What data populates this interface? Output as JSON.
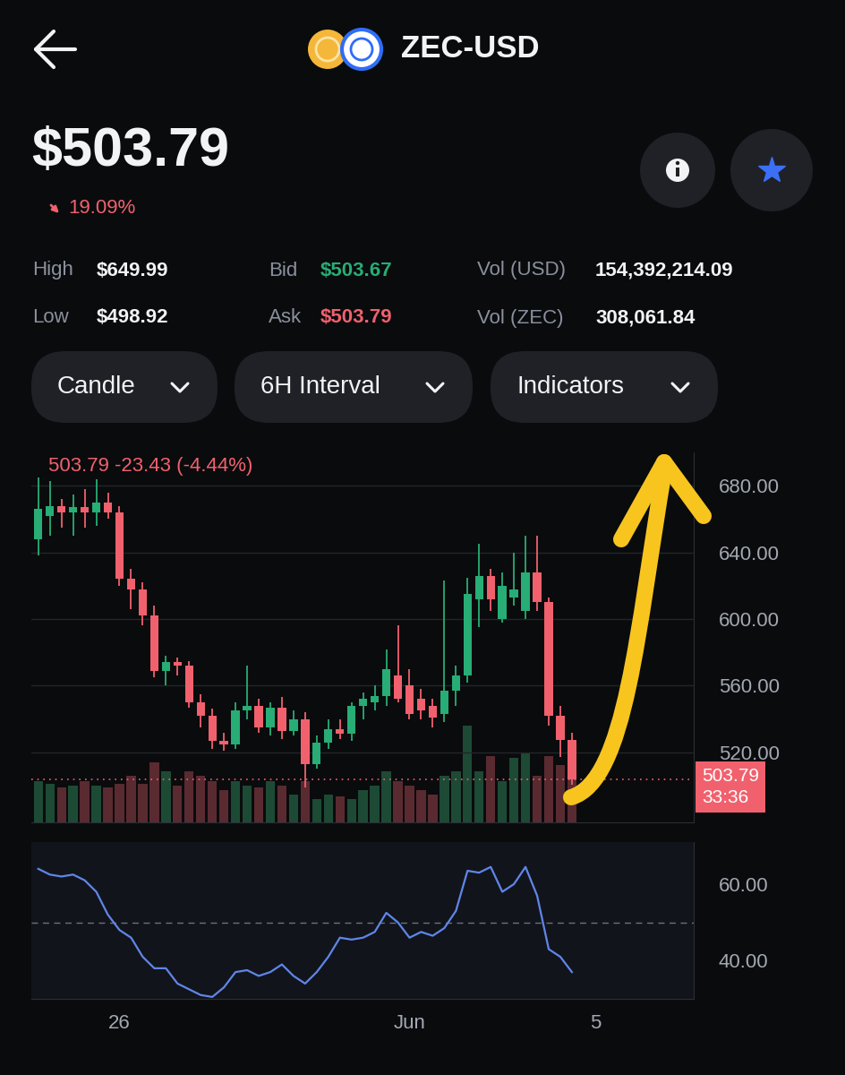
{
  "header": {
    "title": "ZEC-USD",
    "price": "$503.79",
    "change": "19.09%"
  },
  "stats": [
    [
      {
        "label": "High",
        "value": "$649.99",
        "color": "#f2f3f5"
      },
      {
        "label": "Bid",
        "value": "$503.67",
        "color": "#27ad75"
      },
      {
        "label": "Vol (USD)",
        "value": "154,392,214.09",
        "color": "#f2f3f5"
      }
    ],
    [
      {
        "label": "Low",
        "value": "$498.92",
        "color": "#f2f3f5"
      },
      {
        "label": "Ask",
        "value": "$503.79",
        "color": "#f0616d"
      },
      {
        "label": "Vol (ZEC)",
        "value": "308,061.84",
        "color": "#f2f3f5"
      }
    ]
  ],
  "controls": [
    "Candle",
    "6H Interval",
    "Indicators"
  ],
  "chart_data": [
    {
      "type": "candlestick",
      "title": "503.79 -23.43 (-4.44%)",
      "categories": [
        null,
        null,
        null,
        null,
        null,
        null,
        null,
        "26",
        null,
        null,
        null,
        null,
        null,
        null,
        null,
        null,
        null,
        null,
        null,
        null,
        null,
        null,
        null,
        null,
        null,
        null,
        null,
        null,
        null,
        null,
        null,
        null,
        "Jun",
        null,
        null,
        null,
        null,
        null,
        null,
        null,
        null,
        null,
        null,
        null,
        null,
        null,
        null,
        null,
        "5",
        null,
        null,
        null,
        null,
        null,
        null,
        null,
        null
      ],
      "open": [
        648,
        662,
        668,
        664,
        667,
        664,
        670,
        664,
        624,
        618,
        602,
        569,
        574,
        572,
        550,
        542,
        527,
        525,
        545,
        548,
        535,
        547,
        533,
        540,
        513,
        526,
        534,
        531,
        548,
        550,
        554,
        566,
        560,
        552,
        548,
        543,
        557,
        566,
        612,
        626,
        600,
        613,
        605,
        628,
        610,
        542,
        527.22,
        null,
        null,
        null,
        null,
        null,
        null,
        null,
        null,
        null,
        null
      ],
      "high": [
        685,
        683,
        672,
        675,
        678,
        684,
        676,
        668,
        630,
        622,
        608,
        578,
        577,
        575,
        555,
        546,
        532,
        550,
        572,
        552,
        550,
        553,
        545,
        544,
        530,
        540,
        540,
        550,
        556,
        560,
        582,
        596,
        570,
        558,
        552,
        623,
        572,
        625,
        645,
        630,
        628,
        640,
        650,
        650,
        613,
        548,
        532,
        null,
        null,
        null,
        null,
        null,
        null,
        null,
        null,
        null,
        null
      ],
      "low": [
        638,
        650,
        655,
        650,
        655,
        656,
        660,
        620,
        606,
        596,
        565,
        560,
        566,
        547,
        535,
        522,
        521,
        522,
        540,
        532,
        530,
        528,
        530,
        498.92,
        510,
        522,
        528,
        527,
        540,
        545,
        548,
        550,
        540,
        540,
        535,
        538,
        548,
        562,
        595,
        605,
        598,
        608,
        600,
        605,
        536,
        517,
        500.5,
        null,
        null,
        null,
        null,
        null,
        null,
        null,
        null,
        null,
        null
      ],
      "close": [
        666,
        668,
        664,
        667,
        664,
        670,
        664,
        624,
        618,
        602,
        569,
        574,
        572,
        550,
        542,
        527,
        525,
        545,
        548,
        535,
        547,
        533,
        540,
        513,
        526,
        534,
        531,
        548,
        552,
        554,
        570,
        552,
        543,
        545,
        541,
        557,
        566,
        615,
        626,
        612,
        620,
        618,
        628,
        610,
        542,
        527.22,
        503.79,
        null,
        null,
        null,
        null,
        null,
        null,
        null,
        null,
        null,
        null
      ],
      "series": [
        {
          "type": "bar",
          "axis": "y2",
          "values": [
            45,
            42,
            38,
            40,
            45,
            40,
            38,
            42,
            50,
            42,
            65,
            55,
            40,
            55,
            50,
            45,
            35,
            45,
            40,
            38,
            45,
            40,
            30,
            45,
            25,
            30,
            28,
            25,
            35,
            40,
            55,
            45,
            40,
            35,
            30,
            50,
            55,
            105,
            55,
            72,
            45,
            70,
            75,
            50,
            72,
            62,
            55,
            null,
            null,
            null,
            null,
            null,
            null,
            null,
            null,
            null,
            null
          ]
        }
      ],
      "ylim": [
        478,
        700
      ],
      "yticks": [
        {
          "value": 520,
          "label": "520.00"
        },
        {
          "value": 560,
          "label": "560.00"
        },
        {
          "value": 600,
          "label": "600.00"
        },
        {
          "value": 640,
          "label": "640.00"
        },
        {
          "value": 680,
          "label": "680.00"
        }
      ],
      "y2lim": [
        0,
        400
      ],
      "y2ticks": [],
      "grid": true,
      "tick_labels": "y",
      "annotations": [
        {
          "y": 503.79,
          "text": "503.79",
          "subtext": "33:36"
        }
      ]
    },
    {
      "type": "line",
      "categories": [
        null,
        null,
        null,
        null,
        null,
        null,
        null,
        "26",
        null,
        null,
        null,
        null,
        null,
        null,
        null,
        null,
        null,
        null,
        null,
        null,
        null,
        null,
        null,
        null,
        null,
        null,
        null,
        null,
        null,
        null,
        null,
        null,
        "Jun",
        null,
        null,
        null,
        null,
        null,
        null,
        null,
        null,
        null,
        null,
        null,
        null,
        null,
        null,
        null,
        "5",
        null,
        null,
        null,
        null,
        null,
        null,
        null,
        null
      ],
      "values": [
        64,
        62.5,
        62,
        62.5,
        61,
        58,
        52,
        48,
        46,
        41,
        38,
        38,
        34,
        32.5,
        31,
        30.5,
        33,
        37,
        37.5,
        36,
        37,
        39,
        36,
        34,
        37,
        41,
        46,
        45.5,
        46,
        47.5,
        52.5,
        50,
        46,
        47.5,
        46.5,
        48.5,
        53,
        63.5,
        63,
        64.5,
        58,
        60,
        64.5,
        57,
        43,
        41,
        37,
        null,
        null,
        null,
        null,
        null,
        null,
        null,
        null,
        null,
        null
      ],
      "color": "#5f86e8",
      "ylim": [
        30,
        71
      ],
      "yticks": [
        {
          "value": 40,
          "label": "40.00"
        },
        {
          "value": 60,
          "label": "60.00"
        }
      ],
      "reference_lines": [
        50
      ]
    }
  ]
}
